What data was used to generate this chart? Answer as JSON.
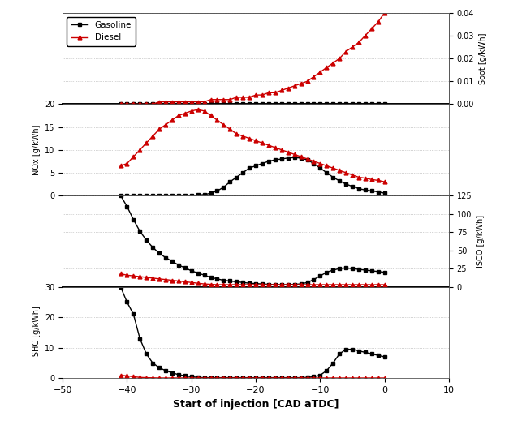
{
  "x": [
    -41,
    -40,
    -39,
    -38,
    -37,
    -36,
    -35,
    -34,
    -33,
    -32,
    -31,
    -30,
    -29,
    -28,
    -27,
    -26,
    -25,
    -24,
    -23,
    -22,
    -21,
    -20,
    -19,
    -18,
    -17,
    -16,
    -15,
    -14,
    -13,
    -12,
    -11,
    -10,
    -9,
    -8,
    -7,
    -6,
    -5,
    -4,
    -3,
    -2,
    -1,
    0
  ],
  "y_gasoline_soot": [
    0.0,
    0.0,
    0.0,
    0.0,
    0.0,
    0.0,
    0.0,
    0.0,
    0.0,
    0.0,
    0.0,
    0.0,
    0.0,
    0.0,
    0.0,
    0.0,
    0.0,
    0.0,
    0.0,
    0.0,
    0.0,
    0.0,
    0.0,
    0.0,
    0.0,
    0.0,
    0.0,
    0.0,
    0.0,
    0.0,
    0.0,
    0.0,
    0.0,
    0.0,
    0.0,
    0.0,
    0.0,
    0.0,
    0.0,
    0.0,
    0.0,
    0.0
  ],
  "y_diesel_soot": [
    0.0,
    0.0,
    0.0,
    0.0,
    0.0,
    0.0,
    0.001,
    0.001,
    0.001,
    0.001,
    0.001,
    0.001,
    0.001,
    0.001,
    0.002,
    0.002,
    0.002,
    0.002,
    0.003,
    0.003,
    0.003,
    0.004,
    0.004,
    0.005,
    0.005,
    0.006,
    0.007,
    0.008,
    0.009,
    0.01,
    0.012,
    0.014,
    0.016,
    0.018,
    0.02,
    0.023,
    0.025,
    0.027,
    0.03,
    0.033,
    0.036,
    0.04
  ],
  "y_gasoline_nox": [
    0.0,
    0.0,
    0.0,
    0.0,
    0.0,
    0.0,
    0.0,
    0.0,
    0.0,
    0.0,
    0.0,
    0.0,
    0.1,
    0.2,
    0.5,
    1.0,
    1.8,
    3.0,
    4.0,
    5.0,
    6.0,
    6.5,
    7.0,
    7.5,
    7.8,
    8.0,
    8.2,
    8.3,
    8.2,
    7.8,
    7.0,
    6.0,
    5.0,
    4.0,
    3.2,
    2.5,
    2.0,
    1.5,
    1.2,
    1.0,
    0.8,
    0.5
  ],
  "y_diesel_nox": [
    6.5,
    7.0,
    8.5,
    10.0,
    11.5,
    13.0,
    14.5,
    15.5,
    16.5,
    17.5,
    18.0,
    18.5,
    18.8,
    18.5,
    17.5,
    16.5,
    15.5,
    14.5,
    13.5,
    13.0,
    12.5,
    12.0,
    11.5,
    11.0,
    10.5,
    10.0,
    9.5,
    9.0,
    8.5,
    8.0,
    7.5,
    7.0,
    6.5,
    6.0,
    5.5,
    5.0,
    4.5,
    4.0,
    3.8,
    3.5,
    3.3,
    3.0
  ],
  "y_gasoline_isco": [
    125,
    110,
    92,
    76,
    64,
    54,
    46,
    40,
    35,
    30,
    26,
    22,
    19,
    16,
    13,
    11,
    9,
    8,
    7,
    6,
    5,
    4.5,
    4,
    3.5,
    3,
    3,
    3,
    3.5,
    4,
    6,
    10,
    15,
    20,
    23,
    25,
    26,
    25,
    24,
    23,
    22,
    21,
    20
  ],
  "y_diesel_isco": [
    18,
    16,
    15,
    14,
    13,
    12,
    11,
    10,
    9,
    8,
    7,
    6,
    5,
    4,
    3.5,
    3,
    3,
    3,
    3,
    3,
    3,
    3,
    3,
    3,
    3,
    3,
    3,
    3,
    3,
    3,
    3,
    3,
    3,
    3,
    3,
    3,
    3,
    3,
    3,
    3,
    3,
    3
  ],
  "y_gasoline_ishc": [
    30,
    25,
    21,
    13,
    8,
    5,
    3.5,
    2.5,
    1.8,
    1.2,
    0.8,
    0.5,
    0.3,
    0.2,
    0.2,
    0.2,
    0.2,
    0.2,
    0.2,
    0.2,
    0.2,
    0.2,
    0.2,
    0.2,
    0.2,
    0.2,
    0.2,
    0.2,
    0.2,
    0.3,
    0.5,
    1.0,
    2.5,
    5.0,
    8.0,
    9.5,
    9.5,
    9.0,
    8.5,
    8.0,
    7.5,
    7.0
  ],
  "y_diesel_ishc": [
    1.0,
    0.8,
    0.5,
    0.3,
    0.2,
    0.15,
    0.1,
    0.1,
    0.1,
    0.1,
    0.1,
    0.1,
    0.1,
    0.1,
    0.1,
    0.1,
    0.1,
    0.1,
    0.1,
    0.1,
    0.1,
    0.1,
    0.1,
    0.1,
    0.1,
    0.1,
    0.1,
    0.1,
    0.1,
    0.1,
    0.1,
    0.1,
    0.1,
    0.1,
    0.1,
    0.1,
    0.1,
    0.1,
    0.1,
    0.1,
    0.1,
    0.1
  ],
  "gasoline_color": "#000000",
  "diesel_color": "#cc0000",
  "gasoline_marker": "s",
  "diesel_marker": "^",
  "markersize": 3.5,
  "linewidth": 1.0,
  "xlabel": "Start of injection [CAD aTDC]",
  "ylabel_soot_right": "Soot [g/kWh]",
  "ylabel_nox": "NOx [g/kWh]",
  "ylabel_isco_right": "ISCO [g/kWh]",
  "ylabel_ishc": "ISHC [g/kWh]",
  "xlim": [
    -50,
    10
  ],
  "xticks": [
    -50,
    -40,
    -30,
    -20,
    -10,
    0,
    10
  ],
  "soot_ylim": [
    0.0,
    0.04
  ],
  "soot_yticks": [
    0.0,
    0.01,
    0.02,
    0.03,
    0.04
  ],
  "nox_ylim": [
    0,
    20
  ],
  "nox_yticks": [
    0,
    5,
    10,
    15,
    20
  ],
  "isco_ylim": [
    0,
    125
  ],
  "isco_yticks": [
    0,
    25,
    50,
    75,
    100,
    125
  ],
  "ishc_ylim": [
    0,
    30
  ],
  "ishc_yticks": [
    0,
    10,
    20,
    30
  ],
  "legend_labels": [
    "Gasoline",
    "Diesel"
  ],
  "bg_color": "#ffffff",
  "grid_color": "#aaaaaa",
  "grid_style": ":"
}
